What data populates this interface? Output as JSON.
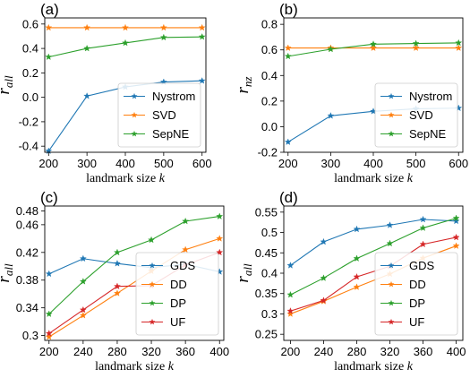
{
  "chart_data": [
    {
      "type": "line",
      "panel_label": "(a)",
      "xlabel": "landmark size",
      "xlabel_var": "k",
      "ylabel": "r",
      "ylabel_sub": "all",
      "x": [
        200,
        300,
        400,
        500,
        600
      ],
      "xticks": [
        "200",
        "300",
        "400",
        "500",
        "600"
      ],
      "yticks": [
        -0.4,
        -0.2,
        0.0,
        0.2,
        0.4,
        0.6
      ],
      "ytick_labels": [
        "-0.4",
        "-0.2",
        "0.0",
        "0.2",
        "0.4",
        "0.6"
      ],
      "xlim": [
        190,
        610
      ],
      "ylim": [
        -0.45,
        0.65
      ],
      "legend": "lower-right",
      "series": [
        {
          "name": "Nystrom",
          "color": "#1f77b4",
          "values": [
            -0.44,
            0.01,
            0.085,
            0.125,
            0.135
          ]
        },
        {
          "name": "SVD",
          "color": "#ff7f0e",
          "values": [
            0.57,
            0.57,
            0.57,
            0.57,
            0.57
          ]
        },
        {
          "name": "SepNE",
          "color": "#2ca02c",
          "values": [
            0.33,
            0.4,
            0.445,
            0.49,
            0.495
          ]
        }
      ]
    },
    {
      "type": "line",
      "panel_label": "(b)",
      "xlabel": "landmark size",
      "xlabel_var": "k",
      "ylabel": "r",
      "ylabel_sub": "nz",
      "x": [
        200,
        300,
        400,
        500,
        600
      ],
      "xticks": [
        "200",
        "300",
        "400",
        "500",
        "600"
      ],
      "yticks": [
        -0.2,
        0.0,
        0.2,
        0.4,
        0.6,
        0.8
      ],
      "ytick_labels": [
        "-0.2",
        "0.0",
        "0.2",
        "0.4",
        "0.6",
        "0.8"
      ],
      "xlim": [
        190,
        610
      ],
      "ylim": [
        -0.2,
        0.85
      ],
      "legend": "lower-right",
      "series": [
        {
          "name": "Nystrom",
          "color": "#1f77b4",
          "values": [
            -0.12,
            0.085,
            0.12,
            0.14,
            0.145
          ]
        },
        {
          "name": "SVD",
          "color": "#ff7f0e",
          "values": [
            0.615,
            0.615,
            0.615,
            0.615,
            0.615
          ]
        },
        {
          "name": "SepNE",
          "color": "#2ca02c",
          "values": [
            0.55,
            0.605,
            0.645,
            0.65,
            0.655
          ]
        }
      ]
    },
    {
      "type": "line",
      "panel_label": "(c)",
      "xlabel": "landmark size",
      "xlabel_var": "k",
      "ylabel": "r",
      "ylabel_sub": "all",
      "x": [
        200,
        240,
        280,
        320,
        360,
        400
      ],
      "xticks": [
        "200",
        "240",
        "280",
        "320",
        "360",
        "400"
      ],
      "yticks": [
        0.3,
        0.34,
        0.38,
        0.42,
        0.46,
        0.48
      ],
      "ytick_labels": [
        "0.3",
        "0.34",
        "0.38",
        "0.42",
        "0.46",
        "0.48"
      ],
      "xlim": [
        195,
        405
      ],
      "ylim": [
        0.293,
        0.487
      ],
      "legend": "lower-right",
      "series": [
        {
          "name": "GDS",
          "color": "#1f77b4",
          "values": [
            0.389,
            0.411,
            0.404,
            0.398,
            0.403,
            0.392
          ]
        },
        {
          "name": "DD",
          "color": "#ff7f0e",
          "values": [
            0.298,
            0.329,
            0.361,
            0.393,
            0.424,
            0.44
          ]
        },
        {
          "name": "DP",
          "color": "#2ca02c",
          "values": [
            0.331,
            0.378,
            0.42,
            0.438,
            0.465,
            0.472
          ]
        },
        {
          "name": "UF",
          "color": "#d62728",
          "values": [
            0.303,
            0.337,
            0.371,
            0.372,
            0.402,
            0.42
          ]
        }
      ]
    },
    {
      "type": "line",
      "panel_label": "(d)",
      "xlabel": "landmark size",
      "xlabel_var": "k",
      "ylabel": "r",
      "ylabel_sub": "all",
      "x": [
        200,
        240,
        280,
        320,
        360,
        400
      ],
      "xticks": [
        "200",
        "240",
        "280",
        "320",
        "360",
        "400"
      ],
      "yticks": [
        0.25,
        0.3,
        0.35,
        0.4,
        0.45,
        0.5,
        0.55
      ],
      "ytick_labels": [
        "0.25",
        "0.3",
        "0.35",
        "0.4",
        "0.45",
        "0.5",
        "0.55"
      ],
      "xlim": [
        192,
        408
      ],
      "ylim": [
        0.235,
        0.565
      ],
      "legend": "lower-right",
      "series": [
        {
          "name": "GDS",
          "color": "#1f77b4",
          "values": [
            0.419,
            0.477,
            0.508,
            0.518,
            0.532,
            0.528
          ]
        },
        {
          "name": "DD",
          "color": "#ff7f0e",
          "values": [
            0.3,
            0.331,
            0.366,
            0.398,
            0.437,
            0.467
          ]
        },
        {
          "name": "DP",
          "color": "#2ca02c",
          "values": [
            0.347,
            0.388,
            0.436,
            0.473,
            0.511,
            0.535
          ]
        },
        {
          "name": "UF",
          "color": "#d62728",
          "values": [
            0.307,
            0.333,
            0.391,
            0.417,
            0.471,
            0.488
          ]
        }
      ]
    }
  ]
}
